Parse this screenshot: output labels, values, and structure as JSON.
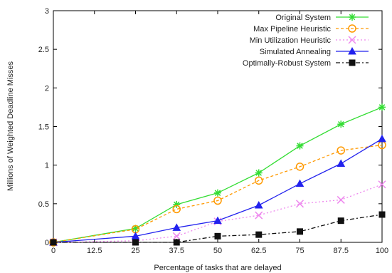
{
  "chart_data": {
    "type": "line",
    "title": "",
    "xlabel": "Percentage of tasks that are delayed",
    "ylabel": "Millions of Weighted Deadline Misses",
    "x": [
      0,
      25,
      37.5,
      50,
      62.5,
      75,
      87.5,
      100
    ],
    "x_ticks": [
      "0",
      "12.5",
      "25",
      "37.5",
      "50",
      "62.5",
      "75",
      "87.5",
      "100"
    ],
    "y_ticks": [
      "0",
      "0.5",
      "1",
      "1.5",
      "2",
      "2.5",
      "3"
    ],
    "xlim": [
      0,
      100
    ],
    "ylim": [
      0,
      3
    ],
    "grid": false,
    "legend_position": "top-right",
    "series": [
      {
        "name": "Original System",
        "color": "#33dd33",
        "dash": "solid",
        "marker": "star",
        "values": [
          0,
          0.18,
          0.49,
          0.64,
          0.9,
          1.25,
          1.53,
          1.75
        ]
      },
      {
        "name": "Max Pipeline Heuristic",
        "color": "#ff9900",
        "dash": "dashed",
        "marker": "circle",
        "values": [
          0,
          0.17,
          0.43,
          0.54,
          0.8,
          0.98,
          1.19,
          1.26
        ]
      },
      {
        "name": "Min Utilization Heuristic",
        "color": "#ee88ee",
        "dash": "dotted",
        "marker": "cross",
        "values": [
          0,
          0.02,
          0.08,
          0.27,
          0.35,
          0.5,
          0.55,
          0.75
        ]
      },
      {
        "name": "Simulated Annealing",
        "color": "#2222ee",
        "dash": "solid",
        "marker": "triangle",
        "values": [
          0,
          0.08,
          0.19,
          0.28,
          0.48,
          0.76,
          1.02,
          1.34
        ]
      },
      {
        "name": "Optimally-Robust System",
        "color": "#111111",
        "dash": "dashdot",
        "marker": "square",
        "values": [
          0,
          0,
          0,
          0.08,
          0.1,
          0.14,
          0.28,
          0.36
        ]
      }
    ]
  }
}
